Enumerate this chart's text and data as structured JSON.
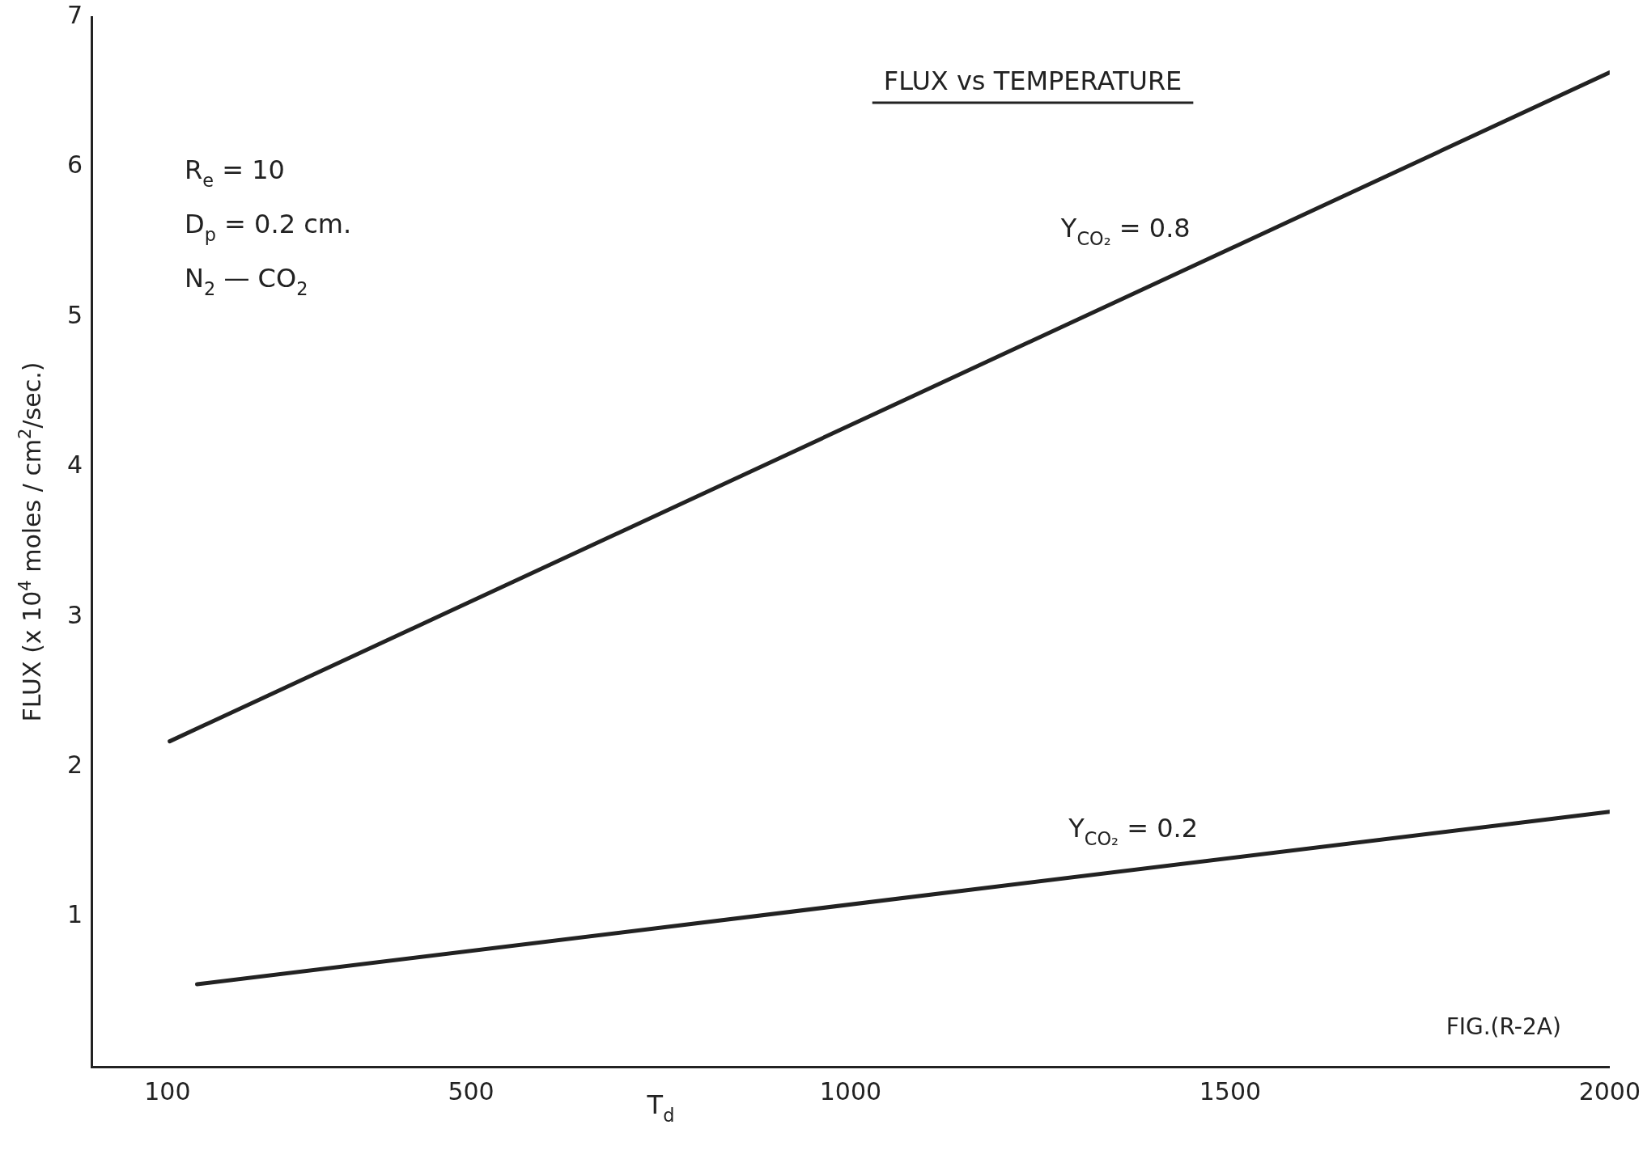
{
  "chart_data": {
    "type": "line",
    "title": "FLUX vs TEMPERATURE",
    "xlabel": "T$_{d}$",
    "ylabel": "FLUX (x 10$^{4}$ moles / cm$^{2}$/sec.)",
    "annotations": [
      "R$_{e}$ = 10",
      "D$_{p}$ = 0.2 cm.",
      "N$_{2}$ — CO$_{2}$",
      "FIG.(R-2A)"
    ],
    "series": [
      {
        "name": "Y$_{CO₂}$ = 0.8",
        "color": "#222222",
        "x": [
          103,
          2000
        ],
        "values": [
          2.17,
          6.63
        ]
      },
      {
        "name": "Y$_{CO₂}$ = 0.2",
        "color": "#222222",
        "x": [
          139,
          2000
        ],
        "values": [
          0.55,
          1.7
        ]
      }
    ],
    "xlim": [
      0,
      2000
    ],
    "xticks": [
      100,
      500,
      1000,
      1500,
      2000
    ],
    "ylim": [
      0,
      7
    ],
    "yticks": [
      1,
      2,
      3,
      4,
      5,
      6,
      7
    ],
    "grid": false,
    "legend": false,
    "marker": "none",
    "line_style": "solid"
  }
}
